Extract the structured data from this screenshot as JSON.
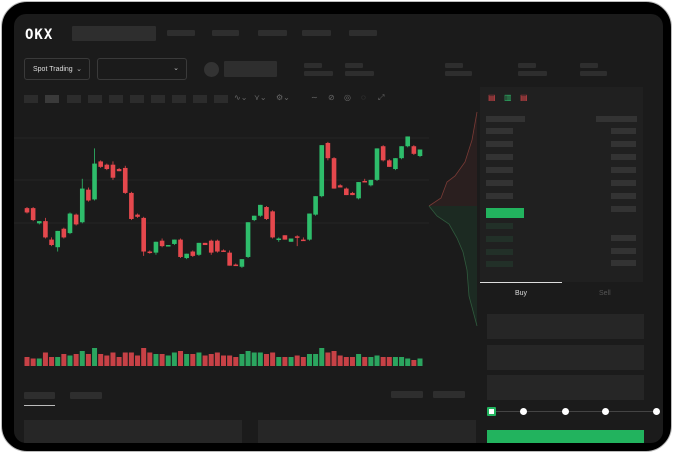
{
  "header": {
    "logo": "OKX",
    "market_type": "Spot Trading"
  },
  "trade_panel": {
    "tabs": [
      {
        "label": "Buy",
        "active": true
      },
      {
        "label": "Sell",
        "active": false
      }
    ],
    "slider_percent": 0
  },
  "colors": {
    "up": "#2ebd6b",
    "down": "#e5484d",
    "accent": "#22b35e",
    "background": "#1b1b1b"
  },
  "icons": {
    "dropdown": "chevron-down-icon",
    "book_views": [
      "orderbook-both-icon",
      "orderbook-bids-icon",
      "orderbook-asks-icon"
    ]
  },
  "chart_data": {
    "type": "candlestick",
    "title": "",
    "candles": [
      [
        97,
        98,
        92,
        93
      ],
      [
        97,
        98,
        85,
        86
      ],
      [
        83,
        85,
        82,
        85
      ],
      [
        85,
        88,
        69,
        70
      ],
      [
        68,
        70,
        62,
        63
      ],
      [
        61,
        76,
        57,
        76
      ],
      [
        78,
        79,
        69,
        70
      ],
      [
        74,
        93,
        73,
        92
      ],
      [
        91,
        92,
        81,
        82
      ],
      [
        84,
        124,
        83,
        115
      ],
      [
        114,
        116,
        103,
        104
      ],
      [
        105,
        152,
        104,
        138
      ],
      [
        140,
        141,
        134,
        135
      ],
      [
        137,
        138,
        132,
        133
      ],
      [
        137,
        140,
        123,
        125
      ],
      [
        133,
        134,
        131,
        131
      ],
      [
        134,
        136,
        110,
        111
      ],
      [
        111,
        112,
        86,
        87
      ],
      [
        91,
        92,
        88,
        89
      ],
      [
        88,
        89,
        53,
        57
      ],
      [
        57,
        58,
        55,
        56
      ],
      [
        56,
        66,
        54,
        66
      ],
      [
        67,
        69,
        61,
        62
      ],
      [
        62,
        63,
        62,
        63
      ],
      [
        64,
        68,
        63,
        68
      ],
      [
        68,
        69,
        51,
        52
      ],
      [
        51,
        55,
        50,
        55
      ],
      [
        57,
        58,
        52,
        53
      ],
      [
        54,
        65,
        53,
        65
      ],
      [
        65,
        65,
        63,
        63
      ],
      [
        67,
        68,
        54,
        56
      ],
      [
        67,
        68,
        56,
        57
      ],
      [
        58,
        59,
        57,
        57
      ],
      [
        56,
        58,
        44,
        44
      ],
      [
        45,
        46,
        44,
        44
      ],
      [
        43,
        50,
        42,
        50
      ],
      [
        52,
        84,
        51,
        84
      ],
      [
        86,
        90,
        85,
        90
      ],
      [
        90,
        100,
        89,
        100
      ],
      [
        98,
        99,
        86,
        87
      ],
      [
        94,
        95,
        69,
        70
      ],
      [
        68,
        70,
        66,
        69
      ],
      [
        72,
        72,
        68,
        68
      ],
      [
        66,
        69,
        66,
        69
      ],
      [
        71,
        72,
        62,
        70
      ],
      [
        68,
        70,
        67,
        67
      ],
      [
        68,
        92,
        67,
        92
      ],
      [
        91,
        108,
        90,
        108
      ],
      [
        108,
        155,
        107,
        155
      ],
      [
        157,
        158,
        141,
        143
      ],
      [
        143,
        144,
        115,
        115
      ],
      [
        118,
        119,
        116,
        116
      ],
      [
        115,
        116,
        109,
        109
      ],
      [
        111,
        112,
        109,
        109
      ],
      [
        106,
        121,
        105,
        121
      ],
      [
        122,
        124,
        121,
        121
      ],
      [
        118,
        123,
        117,
        123
      ],
      [
        123,
        152,
        122,
        152
      ],
      [
        154,
        155,
        140,
        141
      ],
      [
        141,
        142,
        135,
        135
      ],
      [
        133,
        143,
        132,
        143
      ],
      [
        143,
        154,
        142,
        154
      ],
      [
        154,
        163,
        153,
        163
      ],
      [
        154,
        155,
        146,
        147
      ],
      [
        145,
        151,
        144,
        151
      ]
    ],
    "volumes": [
      6,
      5,
      5,
      9,
      6,
      6,
      8,
      7,
      8,
      10,
      8,
      12,
      8,
      7,
      9,
      6,
      9,
      9,
      7,
      12,
      9,
      8,
      8,
      7,
      9,
      10,
      8,
      8,
      9,
      7,
      8,
      9,
      7,
      7,
      6,
      8,
      10,
      9,
      9,
      8,
      9,
      6,
      6,
      6,
      7,
      6,
      8,
      8,
      12,
      9,
      10,
      7,
      6,
      6,
      8,
      6,
      6,
      7,
      6,
      6,
      6,
      6,
      5,
      4,
      5
    ]
  }
}
